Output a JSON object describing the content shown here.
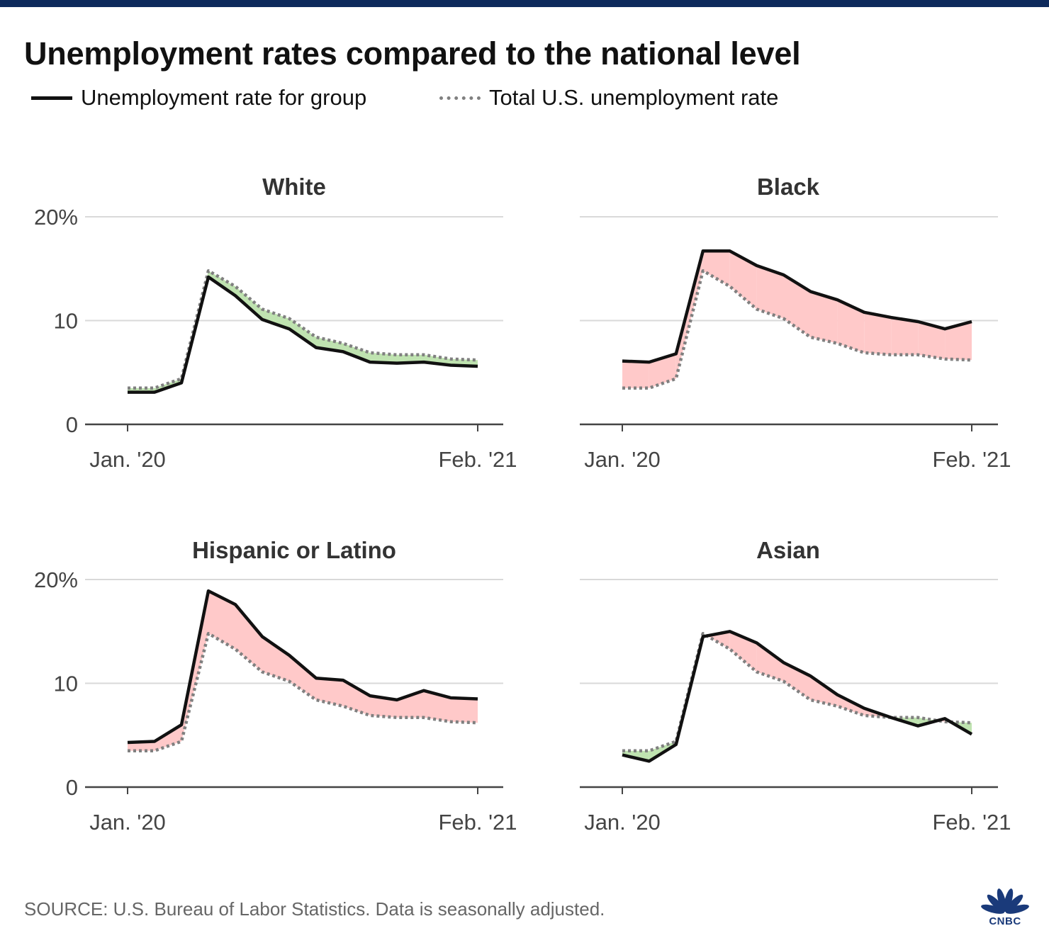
{
  "title": "Unemployment rates compared to the national level",
  "legend": {
    "group_label": "Unemployment rate for group",
    "total_label": "Total U.S. unemployment rate"
  },
  "colors": {
    "group_line": "#111111",
    "total_line": "#808080",
    "above_fill": "#ffc9c9",
    "below_fill": "#bfe3b0",
    "grid": "#d9d9d9",
    "top_bar": "#0e2a5c"
  },
  "source": "SOURCE: U.S. Bureau of Labor Statistics. Data is seasonally adjusted.",
  "logo": {
    "text": "CNBC",
    "icon": "peacock-icon"
  },
  "chart_data": [
    {
      "type": "line",
      "title": "White",
      "x_tick_labels": [
        "Jan. '20",
        "Feb. '21"
      ],
      "y_tick_labels": [
        "20%",
        "10",
        "0"
      ],
      "y_ticks": [
        20,
        10,
        0
      ],
      "ylim": [
        0,
        20
      ],
      "x": [
        "2020-01",
        "2020-02",
        "2020-03",
        "2020-04",
        "2020-05",
        "2020-06",
        "2020-07",
        "2020-08",
        "2020-09",
        "2020-10",
        "2020-11",
        "2020-12",
        "2021-01",
        "2021-02"
      ],
      "series": [
        {
          "values": [
            3.1,
            3.1,
            4.0,
            14.2,
            12.4,
            10.1,
            9.2,
            7.4,
            7.0,
            6.0,
            5.9,
            6.0,
            5.7,
            5.6
          ]
        },
        {
          "values": [
            3.5,
            3.5,
            4.4,
            14.8,
            13.3,
            11.1,
            10.2,
            8.4,
            7.8,
            6.9,
            6.7,
            6.7,
            6.3,
            6.2
          ]
        }
      ],
      "grid": true
    },
    {
      "type": "line",
      "title": "Black",
      "x_tick_labels": [
        "Jan. '20",
        "Feb. '21"
      ],
      "y_tick_labels": [
        "",
        "",
        ""
      ],
      "y_ticks": [
        20,
        10,
        0
      ],
      "ylim": [
        0,
        20
      ],
      "x": [
        "2020-01",
        "2020-02",
        "2020-03",
        "2020-04",
        "2020-05",
        "2020-06",
        "2020-07",
        "2020-08",
        "2020-09",
        "2020-10",
        "2020-11",
        "2020-12",
        "2021-01",
        "2021-02"
      ],
      "series": [
        {
          "values": [
            6.1,
            6.0,
            6.8,
            16.7,
            16.7,
            15.3,
            14.4,
            12.8,
            12.0,
            10.8,
            10.3,
            9.9,
            9.2,
            9.9
          ]
        },
        {
          "values": [
            3.5,
            3.5,
            4.4,
            14.8,
            13.3,
            11.1,
            10.2,
            8.4,
            7.8,
            6.9,
            6.7,
            6.7,
            6.3,
            6.2
          ]
        }
      ],
      "grid": true
    },
    {
      "type": "line",
      "title": "Hispanic or Latino",
      "x_tick_labels": [
        "Jan. '20",
        "Feb. '21"
      ],
      "y_tick_labels": [
        "20%",
        "10",
        "0"
      ],
      "y_ticks": [
        20,
        10,
        0
      ],
      "ylim": [
        0,
        20
      ],
      "x": [
        "2020-01",
        "2020-02",
        "2020-03",
        "2020-04",
        "2020-05",
        "2020-06",
        "2020-07",
        "2020-08",
        "2020-09",
        "2020-10",
        "2020-11",
        "2020-12",
        "2021-01",
        "2021-02"
      ],
      "series": [
        {
          "values": [
            4.3,
            4.4,
            6.0,
            18.9,
            17.6,
            14.5,
            12.7,
            10.5,
            10.3,
            8.8,
            8.4,
            9.3,
            8.6,
            8.5
          ]
        },
        {
          "values": [
            3.5,
            3.5,
            4.4,
            14.8,
            13.3,
            11.1,
            10.2,
            8.4,
            7.8,
            6.9,
            6.7,
            6.7,
            6.3,
            6.2
          ]
        }
      ],
      "grid": true
    },
    {
      "type": "line",
      "title": "Asian",
      "x_tick_labels": [
        "Jan. '20",
        "Feb. '21"
      ],
      "y_tick_labels": [
        "",
        "",
        ""
      ],
      "y_ticks": [
        20,
        10,
        0
      ],
      "ylim": [
        0,
        20
      ],
      "x": [
        "2020-01",
        "2020-02",
        "2020-03",
        "2020-04",
        "2020-05",
        "2020-06",
        "2020-07",
        "2020-08",
        "2020-09",
        "2020-10",
        "2020-11",
        "2020-12",
        "2021-01",
        "2021-02"
      ],
      "series": [
        {
          "values": [
            3.1,
            2.5,
            4.1,
            14.5,
            15.0,
            13.9,
            12.0,
            10.7,
            8.9,
            7.6,
            6.7,
            5.9,
            6.6,
            5.1
          ]
        },
        {
          "values": [
            3.5,
            3.5,
            4.4,
            14.8,
            13.3,
            11.1,
            10.2,
            8.4,
            7.8,
            6.9,
            6.7,
            6.7,
            6.3,
            6.2
          ]
        }
      ],
      "grid": true
    }
  ]
}
